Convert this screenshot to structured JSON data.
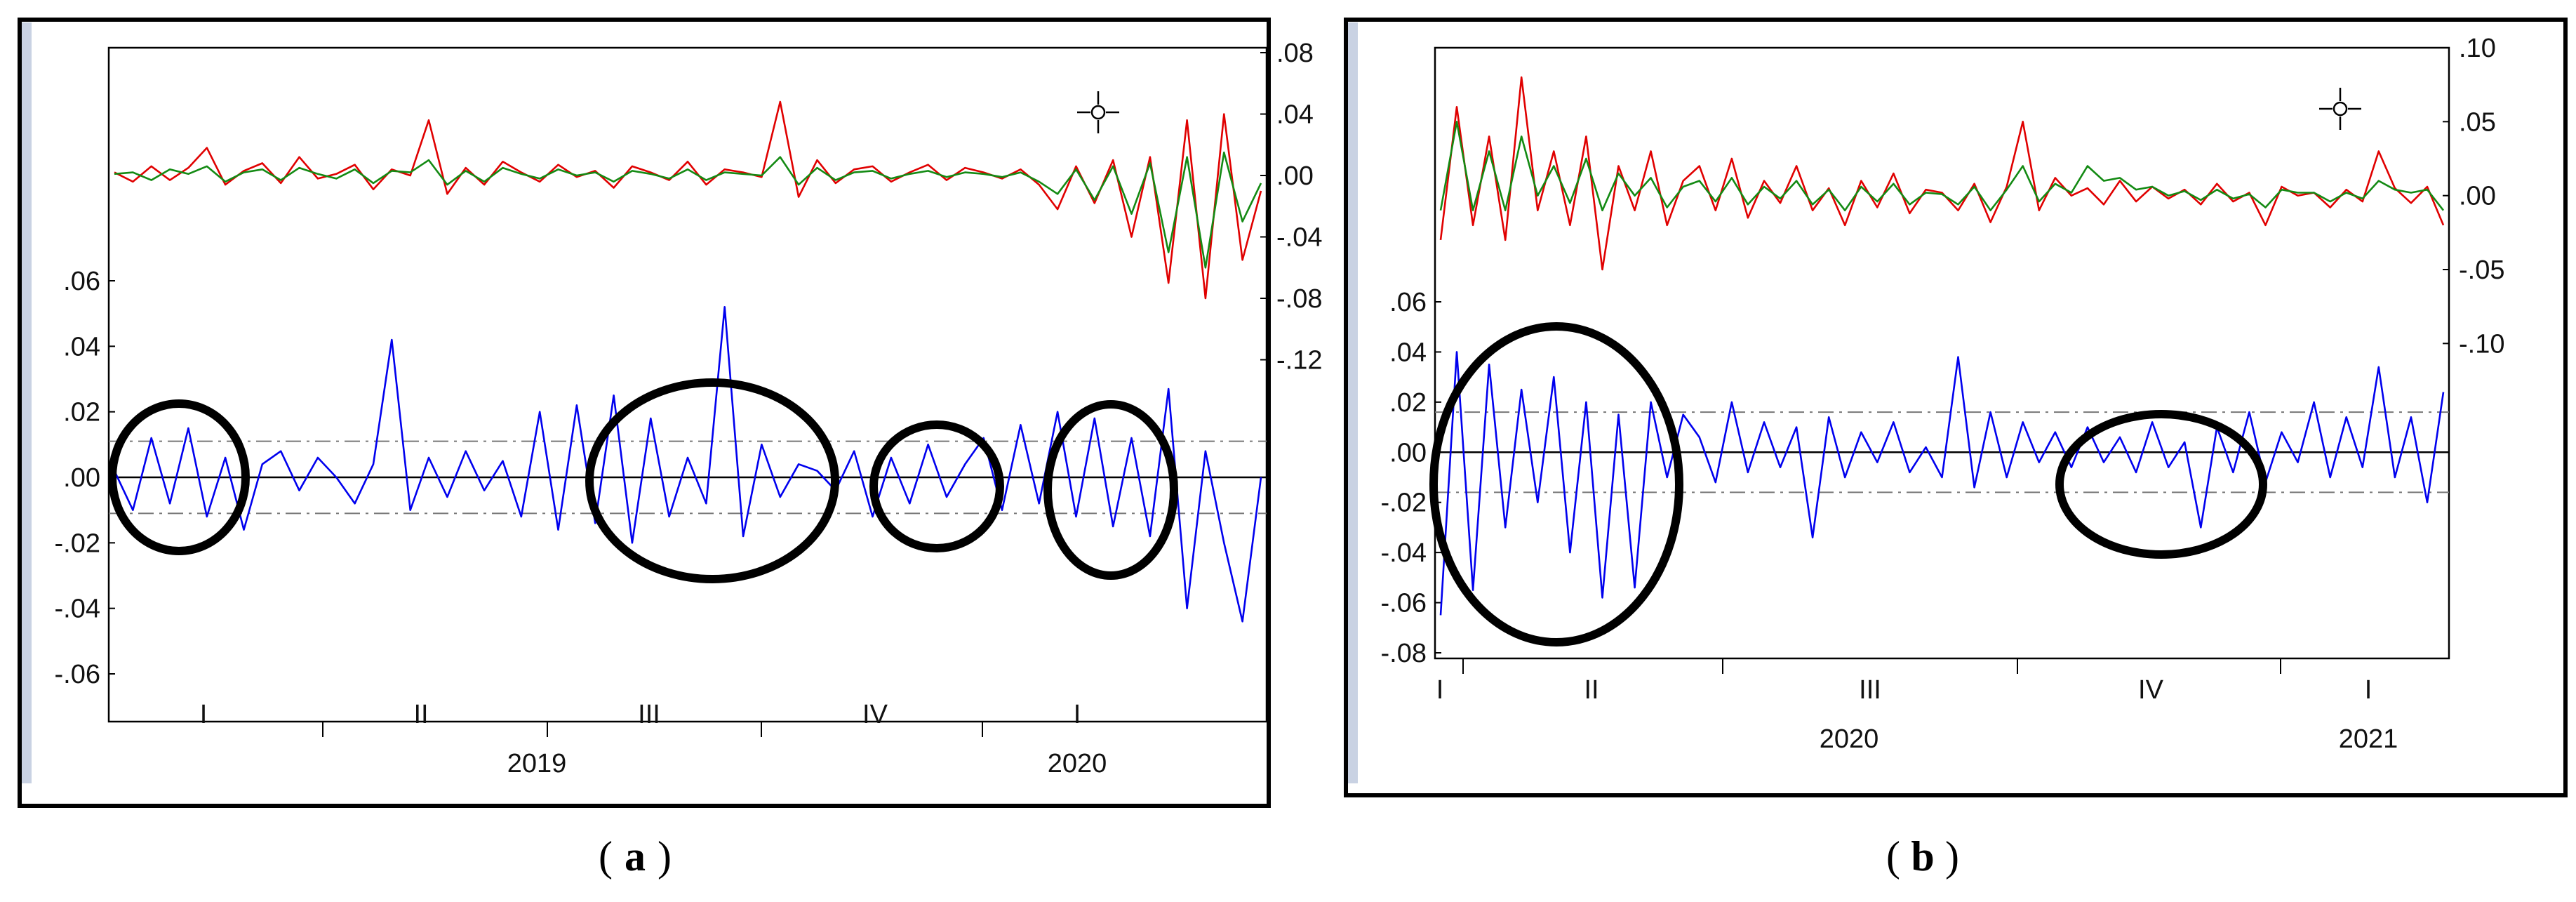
{
  "chart_data": [
    {
      "type": "line",
      "panel_caption": "(a)",
      "caption_letter": "a",
      "left_axis": {
        "ticks": [
          ".06",
          ".04",
          ".02",
          ".00",
          "-.02",
          "-.04",
          "-.06"
        ],
        "values": [
          0.06,
          0.04,
          0.02,
          0.0,
          -0.02,
          -0.04,
          -0.06
        ],
        "range": [
          -0.06,
          0.06
        ]
      },
      "right_axis": {
        "ticks": [
          ".08",
          ".04",
          ".00",
          "-.04",
          "-.08",
          "-.12"
        ],
        "values": [
          0.08,
          0.04,
          0.0,
          -0.04,
          -0.08,
          -0.12
        ],
        "range": [
          -0.16,
          0.08
        ]
      },
      "quarters": [
        "I",
        "II",
        "III",
        "IV",
        "I"
      ],
      "years": [
        "2019",
        "2020"
      ],
      "bands": {
        "upper": 0.011,
        "lower": -0.011
      },
      "series": [
        {
          "role": "actual",
          "color": "#e00000",
          "axis": "right",
          "values": [
            0.002,
            -0.004,
            0.006,
            -0.003,
            0.005,
            0.018,
            -0.006,
            0.003,
            0.008,
            -0.005,
            0.012,
            -0.002,
            0.001,
            0.007,
            -0.009,
            0.004,
            0.0,
            0.036,
            -0.012,
            0.005,
            -0.006,
            0.009,
            0.002,
            -0.004,
            0.007,
            -0.001,
            0.003,
            -0.008,
            0.006,
            0.002,
            -0.003,
            0.009,
            -0.006,
            0.004,
            0.002,
            -0.001,
            0.048,
            -0.014,
            0.01,
            -0.005,
            0.004,
            0.006,
            -0.004,
            0.002,
            0.007,
            -0.003,
            0.005,
            0.002,
            -0.002,
            0.004,
            -0.006,
            -0.022,
            0.006,
            -0.018,
            0.01,
            -0.04,
            0.012,
            -0.07,
            0.036,
            -0.08,
            0.04,
            -0.055,
            -0.01
          ]
        },
        {
          "role": "fitted",
          "color": "#138a13",
          "axis": "right",
          "values": [
            0.001,
            0.002,
            -0.003,
            0.004,
            0.001,
            0.006,
            -0.004,
            0.002,
            0.004,
            -0.003,
            0.005,
            0.001,
            -0.002,
            0.004,
            -0.005,
            0.003,
            0.002,
            0.01,
            -0.006,
            0.003,
            -0.004,
            0.005,
            0.001,
            -0.002,
            0.004,
            0.0,
            0.002,
            -0.004,
            0.003,
            0.001,
            -0.002,
            0.004,
            -0.003,
            0.002,
            0.001,
            0.0,
            0.012,
            -0.006,
            0.005,
            -0.003,
            0.002,
            0.003,
            -0.002,
            0.001,
            0.003,
            -0.001,
            0.002,
            0.001,
            -0.001,
            0.002,
            -0.004,
            -0.012,
            0.004,
            -0.016,
            0.006,
            -0.025,
            0.008,
            -0.05,
            0.012,
            -0.06,
            0.015,
            -0.03,
            -0.005
          ]
        },
        {
          "role": "residual",
          "color": "#0000ee",
          "axis": "left",
          "values": [
            0.002,
            -0.01,
            0.012,
            -0.008,
            0.015,
            -0.012,
            0.006,
            -0.016,
            0.004,
            0.008,
            -0.004,
            0.006,
            0.0,
            -0.008,
            0.004,
            0.042,
            -0.01,
            0.006,
            -0.006,
            0.008,
            -0.004,
            0.005,
            -0.012,
            0.02,
            -0.016,
            0.022,
            -0.014,
            0.025,
            -0.02,
            0.018,
            -0.012,
            0.006,
            -0.008,
            0.052,
            -0.018,
            0.01,
            -0.006,
            0.004,
            0.002,
            -0.004,
            0.008,
            -0.012,
            0.006,
            -0.008,
            0.01,
            -0.006,
            0.004,
            0.012,
            -0.01,
            0.016,
            -0.008,
            0.02,
            -0.012,
            0.018,
            -0.015,
            0.012,
            -0.018,
            0.027,
            -0.04,
            0.008,
            -0.02,
            -0.044,
            0.0
          ]
        }
      ]
    },
    {
      "type": "line",
      "panel_caption": "(b)",
      "caption_letter": "b",
      "left_axis": {
        "ticks": [
          ".06",
          ".04",
          ".02",
          ".00",
          "-.02",
          "-.04",
          "-.06",
          "-.08"
        ],
        "values": [
          0.06,
          0.04,
          0.02,
          0.0,
          -0.02,
          -0.04,
          -0.06,
          -0.08
        ],
        "range": [
          -0.08,
          0.06
        ]
      },
      "right_axis": {
        "ticks": [
          ".10",
          ".05",
          ".00",
          "-.05",
          "-.10"
        ],
        "values": [
          0.1,
          0.05,
          0.0,
          -0.05,
          -0.1
        ],
        "range": [
          -0.2,
          0.1
        ]
      },
      "quarters": [
        "I",
        "II",
        "III",
        "IV",
        "I"
      ],
      "years": [
        "2020",
        "2021"
      ],
      "bands": {
        "upper": 0.016,
        "lower": -0.016
      },
      "series": [
        {
          "role": "actual",
          "color": "#e00000",
          "axis": "right",
          "values": [
            -0.03,
            0.06,
            -0.02,
            0.04,
            -0.03,
            0.08,
            -0.01,
            0.03,
            -0.02,
            0.04,
            -0.05,
            0.02,
            -0.01,
            0.03,
            -0.02,
            0.01,
            0.02,
            -0.01,
            0.025,
            -0.015,
            0.01,
            -0.005,
            0.02,
            -0.01,
            0.005,
            -0.02,
            0.01,
            -0.008,
            0.015,
            -0.012,
            0.004,
            0.002,
            -0.01,
            0.008,
            -0.018,
            0.006,
            0.05,
            -0.01,
            0.012,
            0.0,
            0.005,
            -0.006,
            0.01,
            -0.004,
            0.006,
            -0.002,
            0.004,
            -0.006,
            0.008,
            -0.004,
            0.002,
            -0.02,
            0.006,
            0.0,
            0.002,
            -0.008,
            0.004,
            -0.004,
            0.03,
            0.005,
            -0.005,
            0.006,
            -0.02
          ]
        },
        {
          "role": "fitted",
          "color": "#138a13",
          "axis": "right",
          "values": [
            -0.01,
            0.05,
            -0.01,
            0.03,
            -0.01,
            0.04,
            0.0,
            0.02,
            -0.005,
            0.025,
            -0.01,
            0.015,
            0.0,
            0.012,
            -0.008,
            0.006,
            0.01,
            -0.004,
            0.012,
            -0.006,
            0.006,
            -0.002,
            0.01,
            -0.006,
            0.004,
            -0.01,
            0.006,
            -0.004,
            0.008,
            -0.006,
            0.002,
            0.001,
            -0.006,
            0.006,
            -0.01,
            0.004,
            0.02,
            -0.004,
            0.008,
            0.002,
            0.02,
            0.01,
            0.012,
            0.004,
            0.006,
            0.0,
            0.003,
            -0.003,
            0.004,
            -0.002,
            0.001,
            -0.008,
            0.004,
            0.002,
            0.002,
            -0.004,
            0.002,
            -0.002,
            0.01,
            0.004,
            0.002,
            0.004,
            -0.01
          ]
        },
        {
          "role": "residual",
          "color": "#0000ee",
          "axis": "left",
          "values": [
            -0.065,
            0.04,
            -0.055,
            0.035,
            -0.03,
            0.025,
            -0.02,
            0.03,
            -0.04,
            0.02,
            -0.058,
            0.015,
            -0.054,
            0.02,
            -0.01,
            0.015,
            0.006,
            -0.012,
            0.02,
            -0.008,
            0.012,
            -0.006,
            0.01,
            -0.034,
            0.014,
            -0.01,
            0.008,
            -0.004,
            0.012,
            -0.008,
            0.002,
            -0.01,
            0.038,
            -0.014,
            0.016,
            -0.01,
            0.012,
            -0.004,
            0.008,
            -0.006,
            0.01,
            -0.004,
            0.006,
            -0.008,
            0.012,
            -0.006,
            0.004,
            -0.03,
            0.01,
            -0.008,
            0.016,
            -0.012,
            0.008,
            -0.004,
            0.02,
            -0.01,
            0.014,
            -0.006,
            0.034,
            -0.01,
            0.014,
            -0.02,
            0.024
          ]
        }
      ]
    }
  ]
}
